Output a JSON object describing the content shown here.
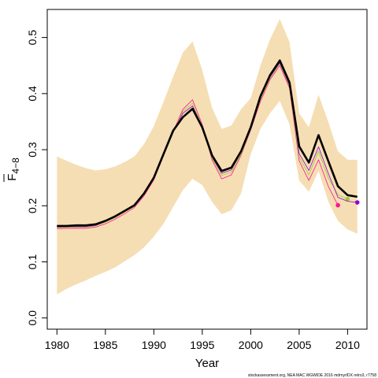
{
  "chart_data": {
    "type": "line",
    "title": "",
    "xlabel": "Year",
    "ylabel": "F 4-8",
    "ylabel_main": "F",
    "ylabel_sub": "4−8",
    "xlim": [
      1979,
      2012
    ],
    "ylim": [
      -0.02,
      0.55
    ],
    "xticks": [
      1980,
      1985,
      1990,
      1995,
      2000,
      2005,
      2010
    ],
    "yticks": [
      0.0,
      0.1,
      0.2,
      0.3,
      0.4,
      0.5
    ],
    "ytick_labels": [
      "0.0",
      "0.1",
      "0.2",
      "0.3",
      "0.4",
      "0.5"
    ],
    "grid": false,
    "band": {
      "color": "#f5deb3",
      "x": [
        1980,
        1981,
        1982,
        1983,
        1984,
        1985,
        1986,
        1987,
        1988,
        1989,
        1990,
        1991,
        1992,
        1993,
        1994,
        1995,
        1996,
        1997,
        1998,
        1999,
        2000,
        2001,
        2002,
        2003,
        2004,
        2005,
        2006,
        2007,
        2008,
        2009,
        2010,
        2011
      ],
      "upper": [
        0.288,
        0.28,
        0.273,
        0.267,
        0.263,
        0.265,
        0.27,
        0.278,
        0.288,
        0.31,
        0.342,
        0.385,
        0.43,
        0.473,
        0.493,
        0.442,
        0.375,
        0.337,
        0.343,
        0.372,
        0.392,
        0.45,
        0.497,
        0.533,
        0.492,
        0.365,
        0.34,
        0.398,
        0.35,
        0.297,
        0.282,
        0.282
      ],
      "lower": [
        0.042,
        0.052,
        0.06,
        0.067,
        0.075,
        0.082,
        0.09,
        0.101,
        0.112,
        0.126,
        0.145,
        0.168,
        0.198,
        0.228,
        0.248,
        0.237,
        0.207,
        0.185,
        0.192,
        0.222,
        0.292,
        0.337,
        0.365,
        0.387,
        0.345,
        0.245,
        0.225,
        0.262,
        0.208,
        0.173,
        0.158,
        0.15
      ]
    },
    "series": [
      {
        "color": "#ff1493",
        "width": 0.8,
        "x": [
          1980,
          1981,
          1982,
          1983,
          1984,
          1985,
          1986,
          1987,
          1988,
          1989,
          1990,
          1991,
          1992,
          1993,
          1994,
          1995,
          1996,
          1997,
          1998,
          1999,
          2000,
          2001,
          2002,
          2003,
          2004,
          2005,
          2006,
          2007,
          2008,
          2009
        ],
        "y": [
          0.159,
          0.16,
          0.16,
          0.16,
          0.162,
          0.168,
          0.176,
          0.186,
          0.197,
          0.218,
          0.246,
          0.289,
          0.332,
          0.372,
          0.389,
          0.345,
          0.282,
          0.248,
          0.255,
          0.29,
          0.335,
          0.386,
          0.425,
          0.45,
          0.41,
          0.28,
          0.245,
          0.282,
          0.235,
          0.201
        ],
        "end_dot": true
      },
      {
        "color": "#9acd32",
        "width": 0.8,
        "x": [
          1980,
          1981,
          1982,
          1983,
          1984,
          1985,
          1986,
          1987,
          1988,
          1989,
          1990,
          1991,
          1992,
          1993,
          1994,
          1995,
          1996,
          1997,
          1998,
          1999,
          2000,
          2001,
          2002,
          2003,
          2004,
          2005,
          2006,
          2007,
          2008,
          2009,
          2010
        ],
        "y": [
          0.161,
          0.162,
          0.162,
          0.162,
          0.164,
          0.171,
          0.179,
          0.189,
          0.199,
          0.22,
          0.248,
          0.289,
          0.33,
          0.368,
          0.383,
          0.342,
          0.285,
          0.254,
          0.26,
          0.292,
          0.336,
          0.39,
          0.428,
          0.453,
          0.413,
          0.287,
          0.255,
          0.297,
          0.25,
          0.22,
          0.212
        ],
        "end_dot": true
      },
      {
        "color": "#9400d3",
        "width": 0.8,
        "x": [
          1980,
          1981,
          1982,
          1983,
          1984,
          1985,
          1986,
          1987,
          1988,
          1989,
          1990,
          1991,
          1992,
          1993,
          1994,
          1995,
          1996,
          1997,
          1998,
          1999,
          2000,
          2001,
          2002,
          2003,
          2004,
          2005,
          2006,
          2007,
          2008,
          2009,
          2010,
          2011
        ],
        "y": [
          0.162,
          0.163,
          0.163,
          0.163,
          0.165,
          0.172,
          0.18,
          0.19,
          0.2,
          0.221,
          0.249,
          0.29,
          0.331,
          0.365,
          0.378,
          0.341,
          0.287,
          0.258,
          0.264,
          0.295,
          0.338,
          0.392,
          0.43,
          0.455,
          0.415,
          0.293,
          0.263,
          0.305,
          0.258,
          0.215,
          0.208,
          0.206
        ],
        "end_dot": true
      },
      {
        "color": "#000000",
        "width": 2.6,
        "x": [
          1980,
          1981,
          1982,
          1983,
          1984,
          1985,
          1986,
          1987,
          1988,
          1989,
          1990,
          1991,
          1992,
          1993,
          1994,
          1995,
          1996,
          1997,
          1998,
          1999,
          2000,
          2001,
          2002,
          2003,
          2004,
          2005,
          2006,
          2007,
          2008,
          2009,
          2010,
          2011
        ],
        "y": [
          0.164,
          0.164,
          0.165,
          0.165,
          0.167,
          0.173,
          0.181,
          0.191,
          0.201,
          0.222,
          0.25,
          0.292,
          0.334,
          0.358,
          0.373,
          0.34,
          0.29,
          0.262,
          0.268,
          0.297,
          0.34,
          0.395,
          0.433,
          0.459,
          0.42,
          0.306,
          0.277,
          0.326,
          0.28,
          0.235,
          0.219,
          0.216
        ],
        "end_dot": false
      }
    ],
    "footnote": "stockassessment.org, NEA MAC WGWIDE 2016 mdrnyrIDX retro3, r7758"
  }
}
